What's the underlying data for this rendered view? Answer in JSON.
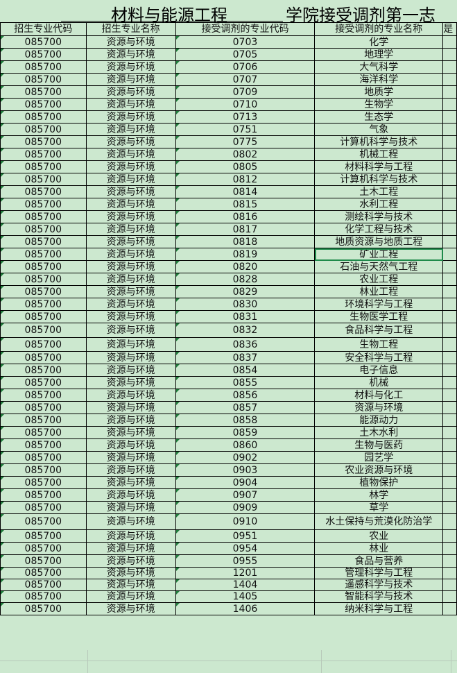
{
  "title": {
    "part1": "材料与能源工程",
    "part2": "学院接受调剂第一志"
  },
  "headers": [
    "招生专业代码",
    "招生专业名称",
    "接受调剂的专业代码",
    "接受调剂的专业名称",
    "是"
  ],
  "rows": [
    [
      "085700",
      "资源与环境",
      "0703",
      "化学"
    ],
    [
      "085700",
      "资源与环境",
      "0705",
      "地理学"
    ],
    [
      "085700",
      "资源与环境",
      "0706",
      "大气科学"
    ],
    [
      "085700",
      "资源与环境",
      "0707",
      "海洋科学"
    ],
    [
      "085700",
      "资源与环境",
      "0709",
      "地质学"
    ],
    [
      "085700",
      "资源与环境",
      "0710",
      "生物学"
    ],
    [
      "085700",
      "资源与环境",
      "0713",
      "生态学"
    ],
    [
      "085700",
      "资源与环境",
      "0751",
      "气象"
    ],
    [
      "085700",
      "资源与环境",
      "0775",
      "计算机科学与技术"
    ],
    [
      "085700",
      "资源与环境",
      "0802",
      "机械工程"
    ],
    [
      "085700",
      "资源与环境",
      "0805",
      "材料科学与工程"
    ],
    [
      "085700",
      "资源与环境",
      "0812",
      "计算机科学与技术"
    ],
    [
      "085700",
      "资源与环境",
      "0814",
      "土木工程"
    ],
    [
      "085700",
      "资源与环境",
      "0815",
      "水利工程"
    ],
    [
      "085700",
      "资源与环境",
      "0816",
      "测绘科学与技术"
    ],
    [
      "085700",
      "资源与环境",
      "0817",
      "化学工程与技术"
    ],
    [
      "085700",
      "资源与环境",
      "0818",
      "地质资源与地质工程"
    ],
    [
      "085700",
      "资源与环境",
      "0819",
      "矿业工程"
    ],
    [
      "085700",
      "资源与环境",
      "0820",
      "石油与天然气工程"
    ],
    [
      "085700",
      "资源与环境",
      "0828",
      "农业工程"
    ],
    [
      "085700",
      "资源与环境",
      "0829",
      "林业工程"
    ],
    [
      "085700",
      "资源与环境",
      "0830",
      "环境科学与工程"
    ],
    [
      "085700",
      "资源与环境",
      "0831",
      "生物医学工程"
    ],
    [
      "085700",
      "资源与环境",
      "0832",
      "食品科学与工程"
    ],
    [
      "085700",
      "资源与环境",
      "0836",
      "生物工程"
    ],
    [
      "085700",
      "资源与环境",
      "0837",
      "安全科学与工程"
    ],
    [
      "085700",
      "资源与环境",
      "0854",
      "电子信息"
    ],
    [
      "085700",
      "资源与环境",
      "0855",
      "机械"
    ],
    [
      "085700",
      "资源与环境",
      "0856",
      "材料与化工"
    ],
    [
      "085700",
      "资源与环境",
      "0857",
      "资源与环境"
    ],
    [
      "085700",
      "资源与环境",
      "0858",
      "能源动力"
    ],
    [
      "085700",
      "资源与环境",
      "0859",
      "土木水利"
    ],
    [
      "085700",
      "资源与环境",
      "0860",
      "生物与医药"
    ],
    [
      "085700",
      "资源与环境",
      "0902",
      "园艺学"
    ],
    [
      "085700",
      "资源与环境",
      "0903",
      "农业资源与环境"
    ],
    [
      "085700",
      "资源与环境",
      "0904",
      "植物保护"
    ],
    [
      "085700",
      "资源与环境",
      "0907",
      "林学"
    ],
    [
      "085700",
      "资源与环境",
      "0909",
      "草学"
    ],
    [
      "085700",
      "资源与环境",
      "0910",
      "水土保持与荒漠化防治学"
    ],
    [
      "085700",
      "资源与环境",
      "0951",
      "农业"
    ],
    [
      "085700",
      "资源与环境",
      "0954",
      "林业"
    ],
    [
      "085700",
      "资源与环境",
      "0955",
      "食品与营养"
    ],
    [
      "085700",
      "资源与环境",
      "1201",
      "管理科学与工程"
    ],
    [
      "085700",
      "资源与环境",
      "1404",
      "遥感科学与技术"
    ],
    [
      "085700",
      "资源与环境",
      "1405",
      "智能科学与技术"
    ],
    [
      "085700",
      "资源与环境",
      "1406",
      "纳米科学与工程"
    ]
  ],
  "selected_cell": {
    "row": 17,
    "column": "接受调剂的专业名称"
  },
  "colors": {
    "sheet_background": "#cce8cf",
    "selection_border": "#1e8a4a"
  }
}
